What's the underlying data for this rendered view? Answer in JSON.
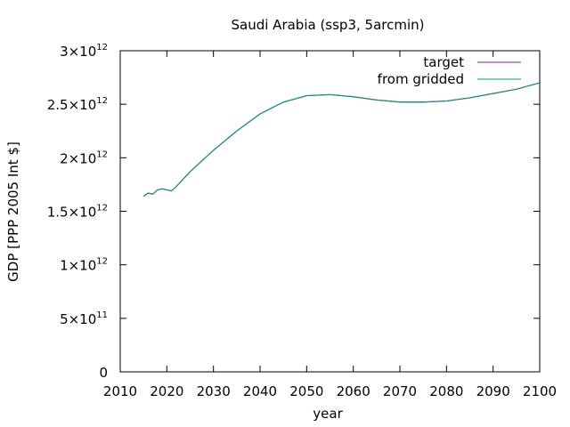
{
  "chart_data": {
    "type": "line",
    "title": "Saudi Arabia (ssp3, 5arcmin)",
    "xlabel": "year",
    "ylabel": "GDP [PPP 2005 Int $]",
    "xlim": [
      2010,
      2100
    ],
    "ylim": [
      0,
      3000000000000.0
    ],
    "grid": false,
    "legend_position": "top-right",
    "x_ticks": [
      2010,
      2020,
      2030,
      2040,
      2050,
      2060,
      2070,
      2080,
      2090,
      2100
    ],
    "x_tick_labels": [
      "2010",
      "2020",
      "2030",
      "2040",
      "2050",
      "2060",
      "2070",
      "2080",
      "2090",
      "2100"
    ],
    "y_ticks": [
      {
        "value": 0,
        "mantissa": "0",
        "exponent": ""
      },
      {
        "value": 500000000000.0,
        "mantissa": "5×10",
        "exponent": "11"
      },
      {
        "value": 1000000000000.0,
        "mantissa": "1×10",
        "exponent": "12"
      },
      {
        "value": 1500000000000.0,
        "mantissa": "1.5×10",
        "exponent": "12"
      },
      {
        "value": 2000000000000.0,
        "mantissa": "2×10",
        "exponent": "12"
      },
      {
        "value": 2500000000000.0,
        "mantissa": "2.5×10",
        "exponent": "12"
      },
      {
        "value": 3000000000000.0,
        "mantissa": "3×10",
        "exponent": "12"
      }
    ],
    "series": [
      {
        "name": "target",
        "color": "#7b1fa2",
        "x": [
          2015,
          2016,
          2017,
          2018,
          2019,
          2020,
          2021,
          2022,
          2025,
          2030,
          2035,
          2040,
          2045,
          2050,
          2055,
          2060,
          2065,
          2070,
          2075,
          2080,
          2085,
          2090,
          2095,
          2100
        ],
        "y": [
          1640000000000.0,
          1670000000000.0,
          1660000000000.0,
          1700000000000.0,
          1710000000000.0,
          1700000000000.0,
          1690000000000.0,
          1730000000000.0,
          1870000000000.0,
          2070000000000.0,
          2250000000000.0,
          2410000000000.0,
          2520000000000.0,
          2580000000000.0,
          2590000000000.0,
          2570000000000.0,
          2540000000000.0,
          2520000000000.0,
          2520000000000.0,
          2530000000000.0,
          2560000000000.0,
          2600000000000.0,
          2640000000000.0,
          2700000000000.0
        ]
      },
      {
        "name": "from gridded",
        "color": "#009e73",
        "x": [
          2015,
          2016,
          2017,
          2018,
          2019,
          2020,
          2021,
          2022,
          2025,
          2030,
          2035,
          2040,
          2045,
          2050,
          2055,
          2060,
          2065,
          2070,
          2075,
          2080,
          2085,
          2090,
          2095,
          2100
        ],
        "y": [
          1640000000000.0,
          1670000000000.0,
          1660000000000.0,
          1700000000000.0,
          1710000000000.0,
          1700000000000.0,
          1690000000000.0,
          1730000000000.0,
          1870000000000.0,
          2070000000000.0,
          2250000000000.0,
          2410000000000.0,
          2520000000000.0,
          2580000000000.0,
          2590000000000.0,
          2570000000000.0,
          2540000000000.0,
          2520000000000.0,
          2520000000000.0,
          2530000000000.0,
          2560000000000.0,
          2600000000000.0,
          2640000000000.0,
          2700000000000.0
        ]
      }
    ]
  }
}
